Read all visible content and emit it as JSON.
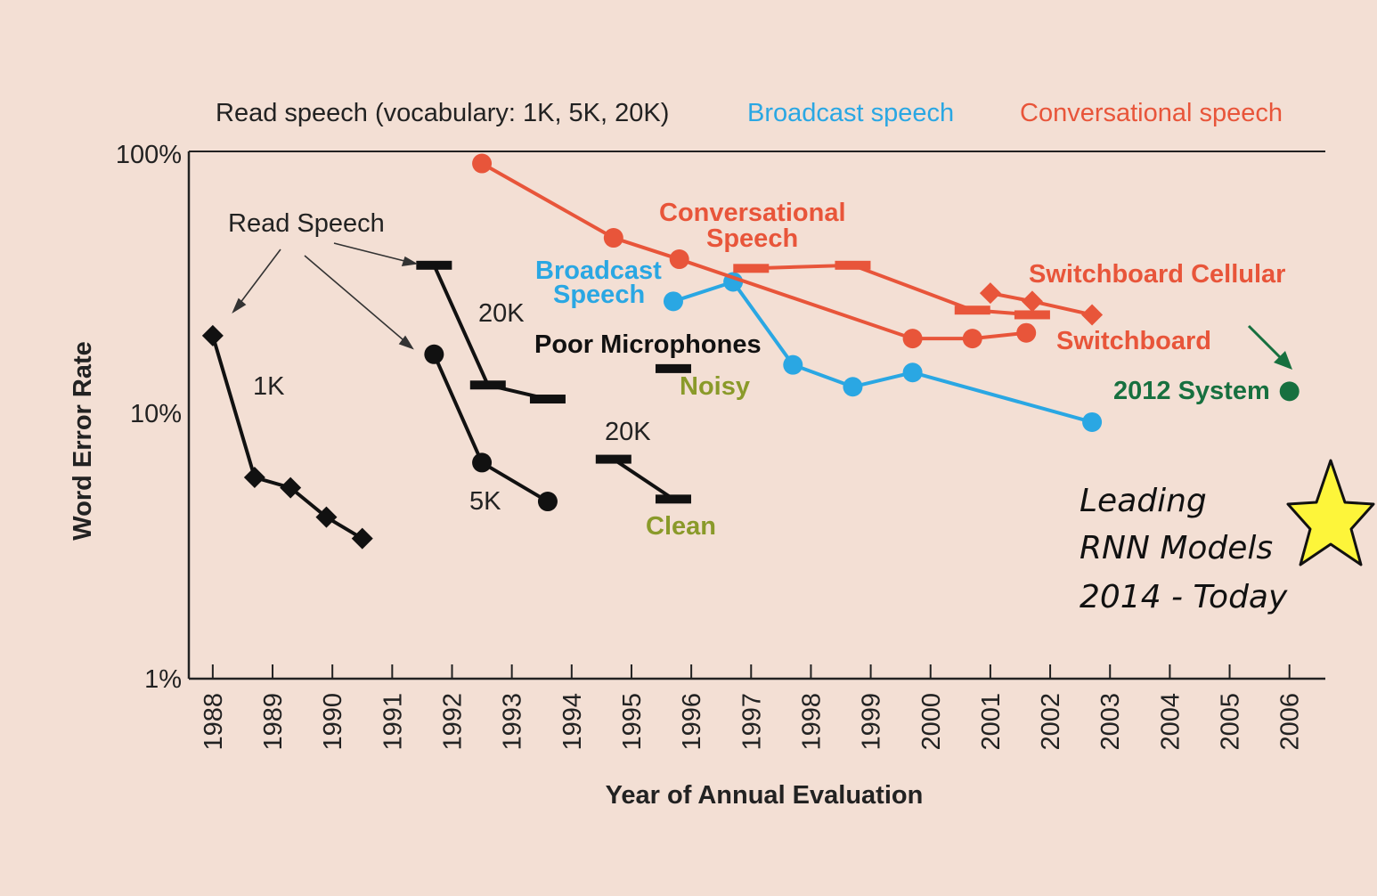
{
  "chart_data": {
    "type": "line",
    "xlabel": "Year of Annual Evaluation",
    "ylabel": "Word Error Rate",
    "yscale": "log",
    "ylim": [
      1,
      100
    ],
    "y_ticks": [
      "100%",
      "10%",
      "1%"
    ],
    "categories": [
      "1988",
      "1989",
      "1990",
      "1991",
      "1992",
      "1993",
      "1994",
      "1995",
      "1996",
      "1997",
      "1998",
      "1999",
      "2000",
      "2001",
      "2002",
      "2003",
      "2004",
      "2005",
      "2006"
    ],
    "legend": {
      "position": "top",
      "entries": [
        {
          "label": "Read speech (vocabulary: 1K, 5K, 20K)",
          "color": "#222222"
        },
        {
          "label": "Broadcast speech",
          "color": "#2aa7e3"
        },
        {
          "label": "Conversational speech",
          "color": "#e8553a"
        }
      ]
    },
    "series": [
      {
        "label": "1K",
        "color": "#111111",
        "marker": "diamond",
        "points": [
          [
            1988.0,
            20
          ],
          [
            1988.7,
            5.8
          ],
          [
            1989.3,
            5.3
          ],
          [
            1989.9,
            4.1
          ],
          [
            1990.5,
            3.4
          ]
        ]
      },
      {
        "label": "5K",
        "color": "#111111",
        "marker": "circle",
        "points": [
          [
            1991.7,
            17
          ],
          [
            1992.5,
            6.6
          ],
          [
            1993.6,
            4.7
          ]
        ]
      },
      {
        "label": "20K",
        "color": "#111111",
        "marker": "bar",
        "points": [
          [
            1991.7,
            37
          ],
          [
            1992.6,
            13
          ],
          [
            1993.6,
            11.5
          ]
        ]
      },
      {
        "label": "Noisy",
        "color": "#111111",
        "marker": "bar",
        "points": [
          [
            1995.7,
            15
          ]
        ]
      },
      {
        "label": "Clean",
        "color": "#111111",
        "marker": "bar",
        "points": [
          [
            1994.7,
            6.8
          ],
          [
            1995.7,
            4.8
          ]
        ]
      },
      {
        "label": "Broadcast Speech",
        "color": "#2aa7e3",
        "marker": "circle",
        "points": [
          [
            1995.7,
            27
          ],
          [
            1996.7,
            32
          ],
          [
            1997.7,
            15.5
          ],
          [
            1998.7,
            12.8
          ],
          [
            1999.7,
            14.5
          ],
          [
            2002.7,
            9.4
          ]
        ]
      },
      {
        "label": "Conversational Speech",
        "color": "#e8553a",
        "marker": "circle",
        "points": [
          [
            1992.5,
            90
          ],
          [
            1994.7,
            47
          ],
          [
            1995.8,
            39
          ],
          [
            1999.7,
            19.5
          ],
          [
            2000.7,
            19.5
          ],
          [
            2001.6,
            20.5
          ]
        ]
      },
      {
        "label": "Conversational Speech",
        "color": "#e8553a",
        "marker": "bar",
        "points": [
          [
            1997.0,
            36
          ],
          [
            1998.7,
            37
          ],
          [
            2000.7,
            25
          ],
          [
            2001.7,
            24
          ]
        ]
      },
      {
        "label": "Switchboard Cellular",
        "color": "#e8553a",
        "marker": "diamond",
        "points": [
          [
            2001.0,
            29
          ],
          [
            2001.7,
            27
          ],
          [
            2002.7,
            24
          ]
        ]
      },
      {
        "label": "2012 System",
        "color": "#17703f",
        "marker": "circle",
        "points": [
          [
            2006.0,
            12.3
          ]
        ]
      }
    ],
    "annotations": [
      {
        "text": "Read Speech",
        "color": "#222222"
      },
      {
        "text": "1K",
        "color": "#222222"
      },
      {
        "text": "5K",
        "color": "#222222"
      },
      {
        "text": "20K",
        "color": "#222222"
      },
      {
        "text": "20K",
        "color": "#222222"
      },
      {
        "text": "Poor Microphones",
        "color": "#111111"
      },
      {
        "text": "Noisy",
        "color": "#8a9a2a"
      },
      {
        "text": "Clean",
        "color": "#8a9a2a"
      },
      {
        "text": "Broadcast",
        "color": "#2aa7e3"
      },
      {
        "text": "Speech",
        "color": "#2aa7e3"
      },
      {
        "text": "Conversational",
        "color": "#e8553a"
      },
      {
        "text": "Speech",
        "color": "#e8553a"
      },
      {
        "text": "Switchboard Cellular",
        "color": "#e8553a"
      },
      {
        "text": "Switchboard",
        "color": "#e8553a"
      },
      {
        "text": "2012 System",
        "color": "#17703f"
      }
    ],
    "note": {
      "lines": [
        "Leading",
        "RNN Models",
        "2014 - Today"
      ],
      "icon": "star-icon",
      "icon_color": "#fdf53a"
    }
  }
}
